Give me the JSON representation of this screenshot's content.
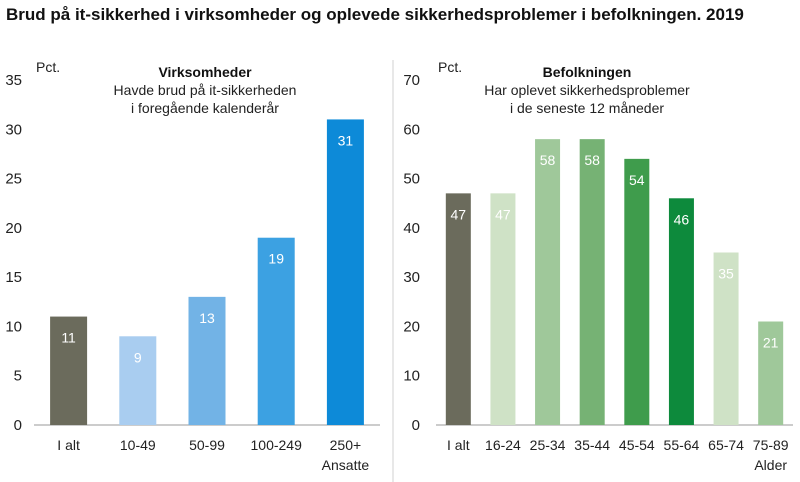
{
  "title": "Brud på it-sikkerhed i virksomheder og oplevede sikkerhedsproblemer i befolkningen. 2019",
  "chart_data": [
    {
      "type": "bar",
      "title": "Virksomheder",
      "subtitle_lines": [
        "Havde brud på  it-sikkerheden",
        "i foregående kalenderår"
      ],
      "ylabel": "Pct.",
      "xlabel": "Ansatte",
      "ylim": [
        0,
        35
      ],
      "yticks": [
        0,
        5,
        10,
        15,
        20,
        25,
        30,
        35
      ],
      "categories": [
        "I alt",
        "10-49",
        "50-99",
        "100-249",
        "250+"
      ],
      "values": [
        11,
        9,
        13,
        19,
        31
      ],
      "colors": [
        "#6b6b5c",
        "#a9cdf0",
        "#72b3e6",
        "#3ca1e2",
        "#0d8ad8"
      ],
      "grid": false
    },
    {
      "type": "bar",
      "title": "Befolkningen",
      "subtitle_lines": [
        "Har oplevet sikkerhedsproblemer",
        "i de seneste 12 måneder"
      ],
      "ylabel": "Pct.",
      "xlabel": "Alder",
      "ylim": [
        0,
        70
      ],
      "yticks": [
        0,
        10,
        20,
        30,
        40,
        50,
        60,
        70
      ],
      "categories": [
        "I alt",
        "16-24",
        "25-34",
        "35-44",
        "45-54",
        "55-64",
        "65-74",
        "75-89"
      ],
      "values": [
        47,
        47,
        58,
        58,
        54,
        46,
        35,
        21
      ],
      "colors": [
        "#6b6b5c",
        "#cfe2c6",
        "#9fc89a",
        "#76b274",
        "#3f9c4c",
        "#0d8a3c",
        "#cfe2c6",
        "#9fc89a"
      ],
      "grid": false
    }
  ]
}
